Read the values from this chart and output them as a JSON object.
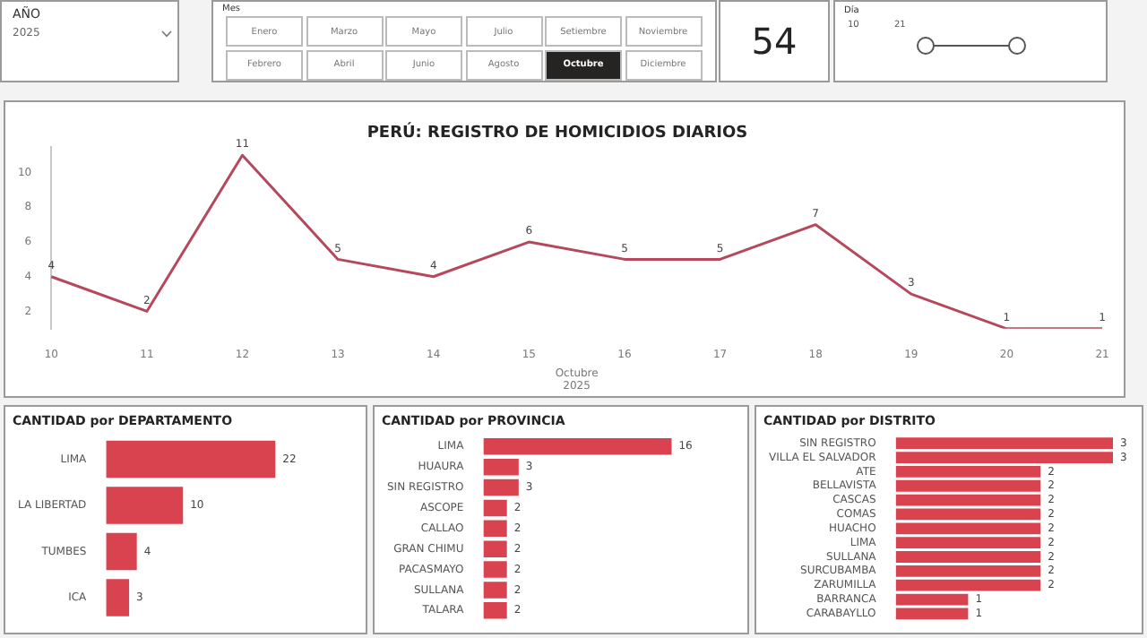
{
  "chart_data": [
    {
      "type": "other",
      "title": "AÑO",
      "annotations": [
        "2025"
      ]
    },
    {
      "type": "other",
      "title": "Mes",
      "categories": [
        "Enero",
        "Marzo",
        "Mayo",
        "Julio",
        "Setiembre",
        "Noviembre",
        "Febrero",
        "Abril",
        "Junio",
        "Agosto",
        "Octubre",
        "Diciembre"
      ],
      "colors": [
        "#ffffff",
        "#ffffff",
        "#ffffff",
        "#ffffff",
        "#ffffff",
        "#ffffff",
        "#ffffff",
        "#ffffff",
        "#ffffff",
        "#ffffff",
        "#252423",
        "#ffffff"
      ]
    },
    {
      "type": "other",
      "annotations": [
        "54"
      ]
    },
    {
      "type": "other",
      "title": "Día",
      "annotations": [
        "10",
        "21"
      ]
    },
    {
      "type": "line",
      "title": "PERÚ: REGISTRO DE HOMICIDIOS DIARIOS",
      "xlabel": "Octubre\n2025",
      "categories": [
        "10",
        "11",
        "12",
        "13",
        "14",
        "15",
        "16",
        "17",
        "18",
        "19",
        "20",
        "21"
      ],
      "values": [
        4,
        2,
        11,
        5,
        4,
        6,
        5,
        5,
        7,
        3,
        1,
        1
      ],
      "color": "#b5485d",
      "ylim": [
        1,
        11.5
      ],
      "yticks": [
        2,
        4,
        6,
        8,
        10
      ],
      "data_labels": true,
      "marker": "none"
    },
    {
      "type": "bar",
      "orientation": "horizontal",
      "title": "CANTIDAD por DEPARTAMENTO",
      "categories": [
        "LIMA",
        "LA LIBERTAD",
        "TUMBES",
        "ICA"
      ],
      "values": [
        22,
        10,
        4,
        3
      ],
      "color": "#d9434f",
      "data_labels": true,
      "tick_labels": "y"
    },
    {
      "type": "bar",
      "orientation": "horizontal",
      "title": "CANTIDAD por PROVINCIA",
      "categories": [
        "LIMA",
        "HUAURA",
        "SIN REGISTRO",
        "ASCOPE",
        "CALLAO",
        "GRAN CHIMU",
        "PACASMAYO",
        "SULLANA",
        "TALARA"
      ],
      "values": [
        16,
        3,
        3,
        2,
        2,
        2,
        2,
        2,
        2
      ],
      "color": "#d9434f",
      "data_labels": true,
      "tick_labels": "y"
    },
    {
      "type": "bar",
      "orientation": "horizontal",
      "title": "CANTIDAD por DISTRITO",
      "categories": [
        "SIN REGISTRO",
        "VILLA EL SALVADOR",
        "ATE",
        "BELLAVISTA",
        "CASCAS",
        "COMAS",
        "HUACHO",
        "LIMA",
        "SULLANA",
        "SURCUBAMBA",
        "ZARUMILLA",
        "BARRANCA",
        "CARABAYLLO"
      ],
      "values": [
        3,
        3,
        2,
        2,
        2,
        2,
        2,
        2,
        2,
        2,
        2,
        1,
        1
      ],
      "color": "#d9434f",
      "data_labels": true,
      "tick_labels": "y"
    }
  ]
}
